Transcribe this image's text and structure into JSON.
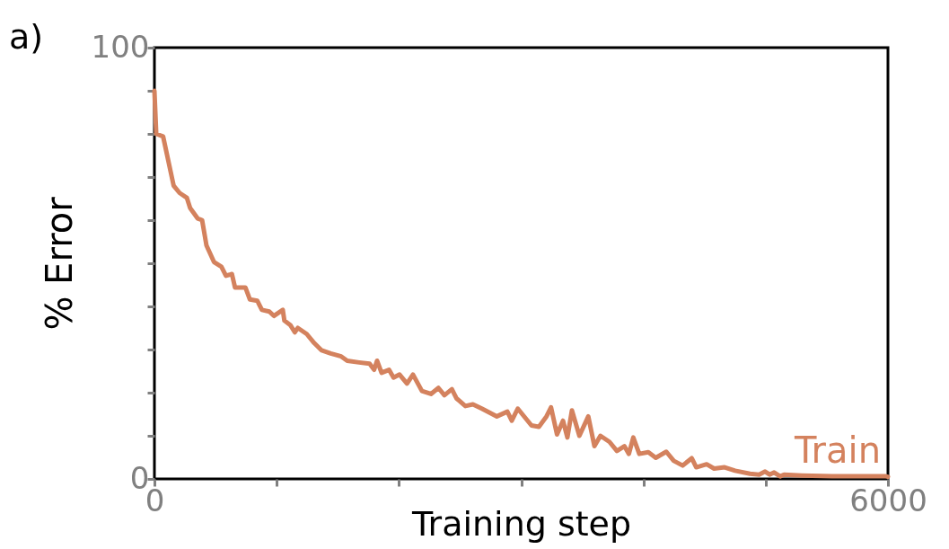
{
  "chart_data": {
    "type": "line",
    "xlabel": "Training step",
    "ylabel": "% Error",
    "annotations": [
      "a)"
    ],
    "xlim": [
      0,
      6000
    ],
    "ylim": [
      0,
      100
    ],
    "xticks": [
      0,
      {
        "value": 1000,
        "label": null
      },
      {
        "value": 2000,
        "label": null
      },
      {
        "value": 3000,
        "label": null
      },
      {
        "value": 4000,
        "label": null
      },
      {
        "value": 5000,
        "label": null
      },
      6000
    ],
    "yticks": [
      0,
      {
        "value": 10,
        "label": null
      },
      {
        "value": 20,
        "label": null
      },
      {
        "value": 30,
        "label": null
      },
      {
        "value": 40,
        "label": null
      },
      {
        "value": 50,
        "label": null
      },
      {
        "value": 60,
        "label": null
      },
      {
        "value": 70,
        "label": null
      },
      {
        "value": 80,
        "label": null
      },
      {
        "value": 90,
        "label": null
      },
      100
    ],
    "grid": false,
    "legend": false,
    "line_style": "solid",
    "marker": "none",
    "series": [
      {
        "name": "Train",
        "color": "#d4825e",
        "x": [
          0,
          15,
          71,
          157,
          206,
          265,
          292,
          353,
          390,
          426,
          487,
          548,
          585,
          634,
          659,
          744,
          781,
          842,
          879,
          940,
          977,
          1050,
          1063,
          1111,
          1148,
          1173,
          1246,
          1307,
          1368,
          1442,
          1528,
          1577,
          1674,
          1760,
          1797,
          1821,
          1858,
          1919,
          1956,
          2005,
          2066,
          2115,
          2188,
          2262,
          2323,
          2372,
          2433,
          2470,
          2543,
          2605,
          2678,
          2752,
          2801,
          2887,
          2923,
          2972,
          3084,
          3145,
          3207,
          3244,
          3293,
          3342,
          3378,
          3415,
          3476,
          3549,
          3599,
          3648,
          3722,
          3783,
          3844,
          3881,
          3917,
          3966,
          4040,
          4101,
          4187,
          4248,
          4321,
          4395,
          4432,
          4517,
          4578,
          4664,
          4750,
          4872,
          4946,
          4995,
          5032,
          5069,
          5118,
          5150,
          5297,
          5542,
          5983,
          6000
        ],
        "values": [
          90,
          80,
          79.4,
          68,
          66.3,
          65.2,
          62.8,
          60.4,
          60,
          54.1,
          50.3,
          49.2,
          47.1,
          47.5,
          44.4,
          44.4,
          41.6,
          41.3,
          39.2,
          38.8,
          37.8,
          39.2,
          36.7,
          35.7,
          34,
          35,
          33.6,
          31.5,
          29.8,
          29.1,
          28.4,
          27.4,
          27,
          26.7,
          25.3,
          27.4,
          24.6,
          25.3,
          23.5,
          24.2,
          22.1,
          24.2,
          20.4,
          19.7,
          21.1,
          19.4,
          20.8,
          18.7,
          16.9,
          17.3,
          16.3,
          15.2,
          14.5,
          15.6,
          13.5,
          16.3,
          12.4,
          12.1,
          14.5,
          16.6,
          10.3,
          13.5,
          9.6,
          15.9,
          10,
          14.5,
          7.6,
          10,
          8.6,
          6.5,
          7.6,
          5.8,
          9.6,
          5.8,
          6.2,
          4.9,
          6.3,
          4.2,
          3.1,
          4.8,
          2.7,
          3.4,
          2.4,
          2.7,
          1.9,
          1.2,
          1,
          1.7,
          1,
          1.5,
          0.6,
          1,
          0.8,
          0.6,
          0.6,
          0.5
        ]
      }
    ]
  }
}
